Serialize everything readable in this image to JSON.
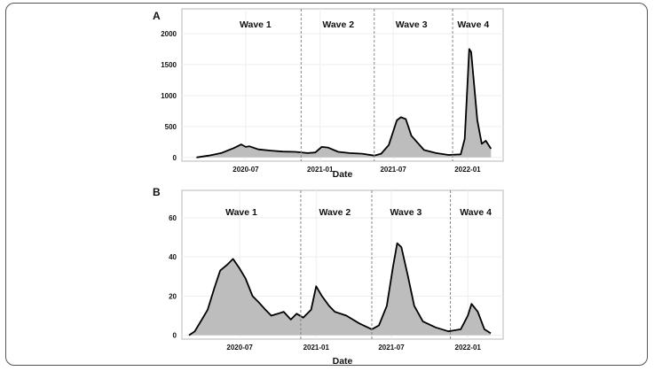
{
  "chart_data": [
    {
      "type": "area",
      "panel_label": "A",
      "xlabel": "Date",
      "ylabel": "",
      "xlim": [
        "2020-01-25",
        "2022-03-30"
      ],
      "ylim": [
        -60,
        2400
      ],
      "xticks": [
        "2020-07",
        "2021-01",
        "2021-07",
        "2022-01"
      ],
      "yticks": [
        0,
        500,
        1000,
        1500,
        2000
      ],
      "grid": true,
      "fill_color": "#bdbdbd",
      "line_color": "#000000",
      "dividers": [
        "2020-11-15",
        "2021-05-15",
        "2021-11-25"
      ],
      "wave_labels": [
        {
          "text": "Wave 1",
          "date": "2020-07-25"
        },
        {
          "text": "Wave 2",
          "date": "2021-02-15"
        },
        {
          "text": "Wave 3",
          "date": "2021-08-15"
        },
        {
          "text": "Wave 4",
          "date": "2022-01-15"
        }
      ],
      "points": [
        [
          "2020-03-01",
          0
        ],
        [
          "2020-04-01",
          30
        ],
        [
          "2020-05-01",
          70
        ],
        [
          "2020-06-01",
          150
        ],
        [
          "2020-06-20",
          210
        ],
        [
          "2020-07-01",
          170
        ],
        [
          "2020-07-10",
          180
        ],
        [
          "2020-08-01",
          130
        ],
        [
          "2020-09-01",
          110
        ],
        [
          "2020-10-01",
          95
        ],
        [
          "2020-11-01",
          90
        ],
        [
          "2020-12-01",
          70
        ],
        [
          "2020-12-20",
          80
        ],
        [
          "2021-01-05",
          170
        ],
        [
          "2021-01-20",
          160
        ],
        [
          "2021-02-15",
          90
        ],
        [
          "2021-03-15",
          70
        ],
        [
          "2021-04-15",
          60
        ],
        [
          "2021-05-15",
          30
        ],
        [
          "2021-06-01",
          60
        ],
        [
          "2021-06-20",
          200
        ],
        [
          "2021-07-10",
          600
        ],
        [
          "2021-07-20",
          650
        ],
        [
          "2021-08-01",
          620
        ],
        [
          "2021-08-15",
          350
        ],
        [
          "2021-09-15",
          120
        ],
        [
          "2021-10-15",
          70
        ],
        [
          "2021-11-15",
          40
        ],
        [
          "2021-12-15",
          50
        ],
        [
          "2021-12-25",
          300
        ],
        [
          "2022-01-05",
          1750
        ],
        [
          "2022-01-10",
          1700
        ],
        [
          "2022-01-25",
          600
        ],
        [
          "2022-02-05",
          220
        ],
        [
          "2022-02-15",
          270
        ],
        [
          "2022-02-28",
          140
        ]
      ]
    },
    {
      "type": "area",
      "panel_label": "B",
      "xlabel": "Date",
      "ylabel": "",
      "xlim": [
        "2020-02-13",
        "2022-03-27"
      ],
      "ylim": [
        -2,
        74
      ],
      "xticks": [
        "2020-07",
        "2021-01",
        "2021-07",
        "2022-01"
      ],
      "yticks": [
        0,
        20,
        40,
        60
      ],
      "grid": true,
      "fill_color": "#bdbdbd",
      "line_color": "#000000",
      "dividers": [
        "2020-11-25",
        "2021-05-15",
        "2021-11-20"
      ],
      "wave_labels": [
        {
          "text": "Wave 1",
          "date": "2020-07-05"
        },
        {
          "text": "Wave 2",
          "date": "2021-02-15"
        },
        {
          "text": "Wave 3",
          "date": "2021-08-05"
        },
        {
          "text": "Wave 4",
          "date": "2022-01-20"
        }
      ],
      "points": [
        [
          "2020-03-01",
          0
        ],
        [
          "2020-03-15",
          2
        ],
        [
          "2020-04-01",
          8
        ],
        [
          "2020-04-15",
          13
        ],
        [
          "2020-05-01",
          24
        ],
        [
          "2020-05-15",
          33
        ],
        [
          "2020-06-01",
          36
        ],
        [
          "2020-06-15",
          39
        ],
        [
          "2020-07-01",
          34
        ],
        [
          "2020-07-15",
          29
        ],
        [
          "2020-08-01",
          20
        ],
        [
          "2020-08-15",
          17
        ],
        [
          "2020-09-01",
          13
        ],
        [
          "2020-09-15",
          10
        ],
        [
          "2020-10-01",
          11
        ],
        [
          "2020-10-15",
          12
        ],
        [
          "2020-11-01",
          8
        ],
        [
          "2020-11-15",
          11
        ],
        [
          "2020-12-01",
          9
        ],
        [
          "2020-12-20",
          13
        ],
        [
          "2021-01-01",
          25
        ],
        [
          "2021-01-15",
          20
        ],
        [
          "2021-02-01",
          15
        ],
        [
          "2021-02-15",
          12
        ],
        [
          "2021-03-15",
          10
        ],
        [
          "2021-04-15",
          6
        ],
        [
          "2021-05-15",
          3
        ],
        [
          "2021-06-01",
          5
        ],
        [
          "2021-06-20",
          15
        ],
        [
          "2021-07-05",
          35
        ],
        [
          "2021-07-15",
          47
        ],
        [
          "2021-07-25",
          45
        ],
        [
          "2021-08-10",
          30
        ],
        [
          "2021-08-25",
          15
        ],
        [
          "2021-09-15",
          7
        ],
        [
          "2021-10-15",
          4
        ],
        [
          "2021-11-15",
          2
        ],
        [
          "2021-12-15",
          3
        ],
        [
          "2022-01-01",
          10
        ],
        [
          "2022-01-10",
          16
        ],
        [
          "2022-01-25",
          12
        ],
        [
          "2022-02-10",
          3
        ],
        [
          "2022-02-25",
          1
        ]
      ]
    }
  ]
}
